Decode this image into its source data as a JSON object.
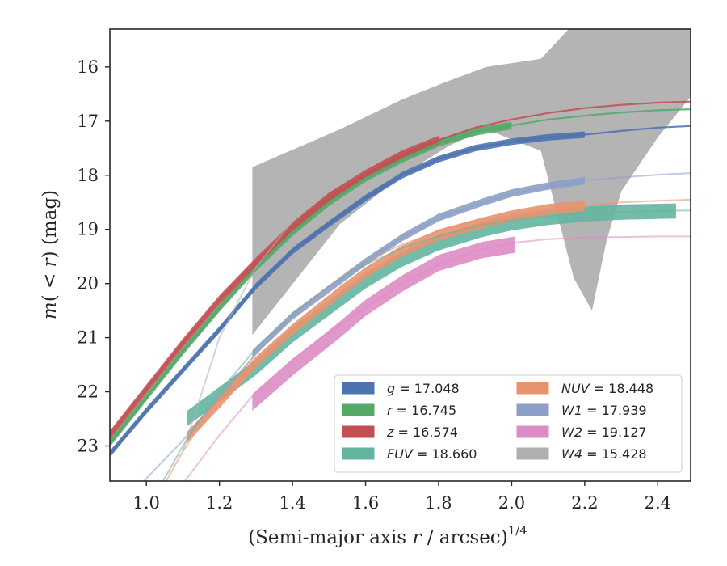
{
  "chart_data": {
    "type": "line",
    "xlabel": "(Semi-major axis r / arcsec)",
    "xlabel_parts": {
      "before": "(Semi-major axis ",
      "var": "r",
      "after": " / arcsec)",
      "sup": "1/4"
    },
    "ylabel": "m(< r) (mag)",
    "ylabel_parts": {
      "m": "m",
      "open": "(",
      "mid": " < ",
      "r": "r",
      "close": ")",
      "unit": " (mag)"
    },
    "xlim": [
      0.9,
      2.49
    ],
    "ylim": [
      23.65,
      15.3
    ],
    "y_inverted": true,
    "grid": false,
    "x_ticks": [
      1.0,
      1.2,
      1.4,
      1.6,
      1.8,
      2.0,
      2.2,
      2.4
    ],
    "x_tick_labels": [
      "1.0",
      "1.2",
      "1.4",
      "1.6",
      "1.8",
      "2.0",
      "2.2",
      "2.4"
    ],
    "y_ticks": [
      16,
      17,
      18,
      19,
      20,
      21,
      22,
      23
    ],
    "y_tick_labels": [
      "16",
      "17",
      "18",
      "19",
      "20",
      "21",
      "22",
      "23"
    ],
    "legend": {
      "placement": "lower-right",
      "columns": 2
    },
    "series": [
      {
        "name": "g = 17.048",
        "var": "g",
        "value": "17.048",
        "color": "#4c72b0",
        "band_x": [
          0.9,
          1.0,
          1.1,
          1.2,
          1.3,
          1.4,
          1.5,
          1.6,
          1.7,
          1.8,
          1.9,
          2.0,
          2.1,
          2.2
        ],
        "band_y": [
          23.15,
          22.35,
          21.6,
          20.85,
          20.05,
          19.4,
          18.9,
          18.42,
          18.0,
          17.7,
          17.5,
          17.38,
          17.3,
          17.25
        ],
        "band_half": 0.06,
        "curve_x": [
          0.9,
          1.0,
          1.1,
          1.2,
          1.3,
          1.4,
          1.5,
          1.6,
          1.7,
          1.8,
          1.9,
          2.0,
          2.1,
          2.2,
          2.3,
          2.4,
          2.49
        ],
        "curve_y": [
          23.15,
          22.35,
          21.6,
          20.85,
          20.05,
          19.4,
          18.9,
          18.42,
          18.0,
          17.7,
          17.5,
          17.38,
          17.3,
          17.25,
          17.18,
          17.12,
          17.09
        ]
      },
      {
        "name": "r = 16.745",
        "var": "r",
        "value": "16.745",
        "color": "#55a868",
        "band_x": [
          0.9,
          1.0,
          1.1,
          1.2,
          1.3,
          1.4,
          1.5,
          1.6,
          1.7,
          1.8,
          1.9,
          2.0
        ],
        "band_y": [
          22.95,
          22.1,
          21.25,
          20.45,
          19.7,
          19.05,
          18.5,
          18.05,
          17.7,
          17.4,
          17.2,
          17.08
        ],
        "band_half": 0.07,
        "curve_x": [
          0.9,
          1.0,
          1.1,
          1.2,
          1.3,
          1.4,
          1.5,
          1.6,
          1.7,
          1.8,
          1.9,
          2.0,
          2.1,
          2.2,
          2.3,
          2.4,
          2.49
        ],
        "curve_y": [
          22.95,
          22.1,
          21.25,
          20.45,
          19.7,
          19.05,
          18.5,
          18.05,
          17.7,
          17.4,
          17.2,
          17.08,
          16.97,
          16.9,
          16.84,
          16.8,
          16.78
        ]
      },
      {
        "name": "z = 16.574",
        "var": "z",
        "value": "16.574",
        "color": "#c44e52",
        "band_x": [
          0.9,
          1.0,
          1.1,
          1.2,
          1.3,
          1.4,
          1.5,
          1.6,
          1.7,
          1.8
        ],
        "band_y": [
          22.8,
          21.95,
          21.1,
          20.3,
          19.6,
          18.95,
          18.4,
          17.98,
          17.62,
          17.35
        ],
        "band_half": 0.08,
        "curve_x": [
          0.9,
          1.0,
          1.1,
          1.2,
          1.3,
          1.4,
          1.5,
          1.6,
          1.7,
          1.8,
          1.9,
          2.0,
          2.1,
          2.2,
          2.3,
          2.4,
          2.49
        ],
        "curve_y": [
          22.8,
          21.95,
          21.1,
          20.3,
          19.6,
          18.95,
          18.4,
          17.98,
          17.62,
          17.35,
          17.12,
          16.97,
          16.85,
          16.76,
          16.7,
          16.66,
          16.64
        ]
      },
      {
        "name": "FUV = 18.660",
        "var": "FUV",
        "value": "18.660",
        "color": "#64b5a0",
        "band_x": [
          1.11,
          1.2,
          1.3,
          1.4,
          1.53,
          1.6,
          1.7,
          1.8,
          1.92,
          2.0,
          2.1,
          2.2,
          2.3,
          2.45
        ],
        "band_y": [
          22.5,
          22.05,
          21.55,
          20.95,
          20.3,
          19.95,
          19.55,
          19.25,
          19.0,
          18.88,
          18.78,
          18.72,
          18.68,
          18.66
        ],
        "band_half": 0.14,
        "curve_x": [
          1.0,
          1.1,
          1.2,
          1.3,
          1.4,
          1.5,
          1.6,
          1.7,
          1.8,
          1.9,
          2.0,
          2.1,
          2.2,
          2.3,
          2.4,
          2.49
        ],
        "curve_y": [
          24.2,
          23.0,
          22.0,
          21.2,
          20.55,
          20.05,
          19.65,
          19.35,
          19.12,
          18.95,
          18.83,
          18.75,
          18.7,
          18.68,
          18.66,
          18.65
        ]
      },
      {
        "name": "NUV = 18.448",
        "var": "NUV",
        "value": "18.448",
        "color": "#e8936f",
        "band_x": [
          1.11,
          1.2,
          1.3,
          1.4,
          1.53,
          1.6,
          1.7,
          1.8,
          1.92,
          2.0,
          2.1,
          2.2
        ],
        "band_y": [
          22.85,
          22.2,
          21.45,
          20.85,
          20.15,
          19.8,
          19.4,
          19.1,
          18.88,
          18.75,
          18.63,
          18.56
        ],
        "band_half": 0.1,
        "curve_x": [
          1.0,
          1.1,
          1.2,
          1.3,
          1.4,
          1.5,
          1.6,
          1.7,
          1.8,
          1.9,
          2.0,
          2.1,
          2.2,
          2.3,
          2.4,
          2.49
        ],
        "curve_y": [
          24.3,
          23.1,
          22.1,
          21.3,
          20.6,
          20.05,
          19.6,
          19.28,
          19.03,
          18.85,
          18.72,
          18.62,
          18.55,
          18.5,
          18.47,
          18.45
        ]
      },
      {
        "name": "W1 = 17.939",
        "var": "W1",
        "value": "17.939",
        "color": "#8c9ec8",
        "band_x": [
          1.29,
          1.4,
          1.53,
          1.6,
          1.7,
          1.8,
          1.92,
          2.0,
          2.1,
          2.2
        ],
        "band_y": [
          21.3,
          20.6,
          19.95,
          19.6,
          19.15,
          18.78,
          18.5,
          18.33,
          18.2,
          18.1
        ],
        "band_half": 0.07,
        "curve_x": [
          0.95,
          1.0,
          1.1,
          1.2,
          1.3,
          1.4,
          1.5,
          1.6,
          1.7,
          1.8,
          1.9,
          2.0,
          2.1,
          2.2,
          2.3,
          2.4,
          2.49
        ],
        "curve_y": [
          24.0,
          23.6,
          22.9,
          22.1,
          21.3,
          20.6,
          20.05,
          19.6,
          19.15,
          18.8,
          18.55,
          18.35,
          18.2,
          18.1,
          18.04,
          17.99,
          17.96
        ]
      },
      {
        "name": "W2 = 19.127",
        "var": "W2",
        "value": "19.127",
        "color": "#dd8cc4",
        "band_x": [
          1.29,
          1.4,
          1.53,
          1.6,
          1.7,
          1.8,
          1.92,
          2.01
        ],
        "band_y": [
          22.2,
          21.55,
          20.85,
          20.45,
          20.0,
          19.62,
          19.38,
          19.28
        ],
        "band_half": 0.15,
        "curve_x": [
          1.05,
          1.1,
          1.2,
          1.3,
          1.4,
          1.5,
          1.6,
          1.7,
          1.8,
          1.9,
          2.0,
          2.1,
          2.2,
          2.3,
          2.4,
          2.49
        ],
        "curve_y": [
          24.2,
          23.7,
          22.8,
          22.0,
          21.4,
          20.9,
          20.45,
          20.0,
          19.65,
          19.4,
          19.25,
          19.18,
          19.15,
          19.14,
          19.13,
          19.13
        ]
      },
      {
        "name": "W4 = 15.428",
        "var": "W4",
        "value": "15.428",
        "color": "#b0b0b0",
        "band_x": [
          1.29,
          1.53,
          1.7,
          1.83,
          1.93,
          2.08,
          2.17,
          2.22,
          2.26,
          2.3,
          2.4,
          2.49
        ],
        "band_top": [
          17.85,
          17.15,
          16.6,
          16.25,
          16.0,
          15.85,
          15.2,
          15.2,
          15.3,
          15.3,
          15.25,
          15.2
        ],
        "band_bot": [
          20.95,
          18.9,
          18.0,
          17.45,
          17.15,
          17.55,
          19.9,
          20.5,
          19.2,
          18.3,
          17.3,
          16.55
        ],
        "curve_x": [
          1.1,
          1.2,
          1.3,
          1.4,
          1.5,
          1.6,
          1.7,
          1.8,
          1.9,
          2.0,
          2.1,
          2.2,
          2.3,
          2.4,
          2.49
        ],
        "curve_y": [
          23.1,
          21.0,
          19.7,
          18.85,
          18.25,
          17.8,
          17.45,
          17.15,
          16.9,
          16.65,
          16.45,
          16.28,
          16.12,
          16.0,
          15.9
        ]
      }
    ]
  }
}
